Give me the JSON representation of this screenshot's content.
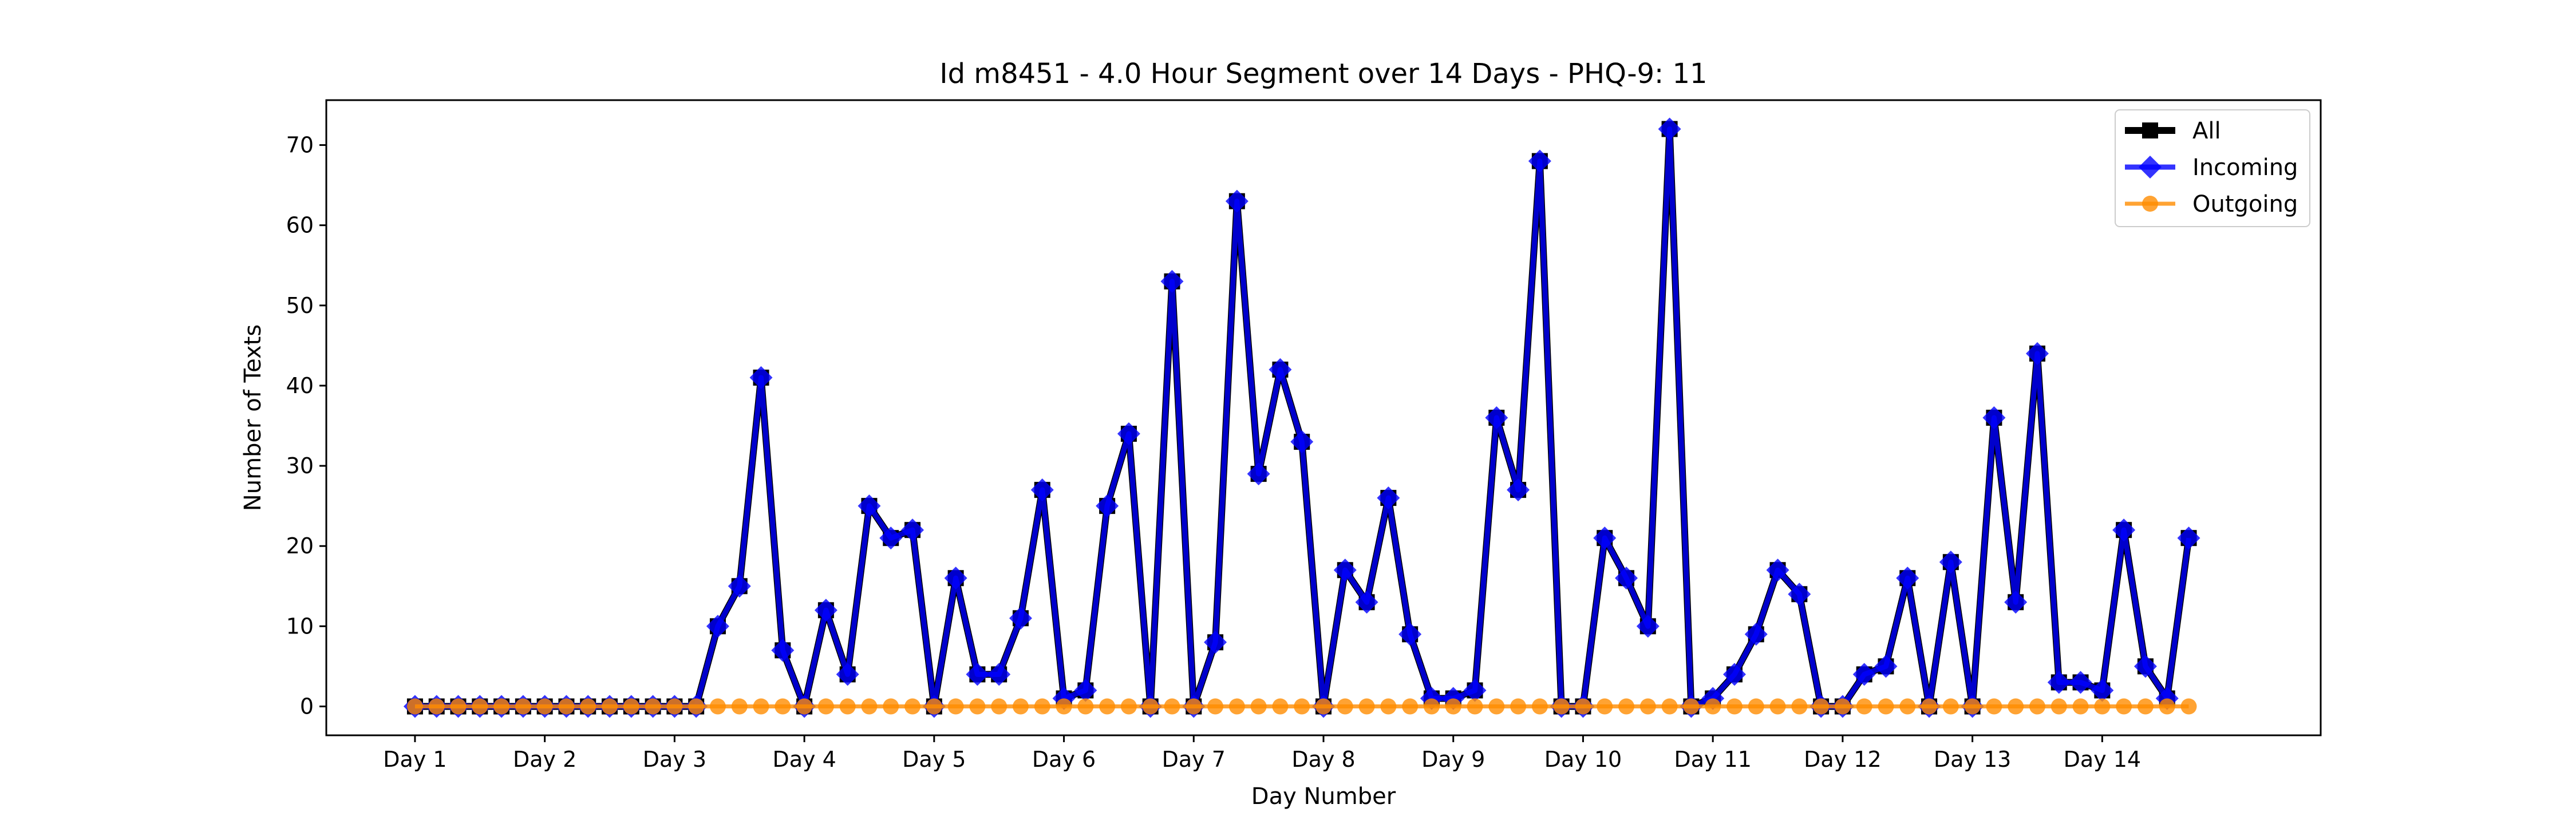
{
  "chart_data": {
    "type": "line",
    "title": "Id m8451 - 4.0 Hour Segment over 14 Days - PHQ-9: 11",
    "xlabel": "Day Number",
    "ylabel": "Number of Texts",
    "x_tick_labels": [
      "Day 1",
      "Day 2",
      "Day 3",
      "Day 4",
      "Day 5",
      "Day 6",
      "Day 7",
      "Day 8",
      "Day 9",
      "Day 10",
      "Day 11",
      "Day 12",
      "Day 13",
      "Day 14"
    ],
    "y_ticks": [
      0,
      10,
      20,
      30,
      40,
      50,
      60,
      70
    ],
    "xlim": [
      -4.1,
      88.1
    ],
    "ylim": [
      -3.6,
      75.6
    ],
    "legend_position": "top-right",
    "grid": false,
    "series": [
      {
        "name": "All",
        "color": "#000000",
        "marker": "square",
        "values": [
          0,
          0,
          0,
          0,
          0,
          0,
          0,
          0,
          0,
          0,
          0,
          0,
          0,
          0,
          10,
          15,
          41,
          7,
          0,
          12,
          4,
          25,
          21,
          22,
          0,
          16,
          4,
          4,
          11,
          27,
          1,
          2,
          25,
          34,
          0,
          53,
          0,
          8,
          63,
          29,
          42,
          33,
          0,
          17,
          13,
          26,
          9,
          1,
          1,
          2,
          36,
          27,
          68,
          0,
          0,
          21,
          16,
          10,
          72,
          0,
          1,
          4,
          9,
          17,
          14,
          0,
          0,
          4,
          5,
          16,
          0,
          18,
          0,
          36,
          13,
          44,
          3,
          3,
          2,
          22,
          5,
          1,
          21
        ]
      },
      {
        "name": "Incoming",
        "color": "#0000ff",
        "marker": "diamond",
        "values": [
          0,
          0,
          0,
          0,
          0,
          0,
          0,
          0,
          0,
          0,
          0,
          0,
          0,
          0,
          10,
          15,
          41,
          7,
          0,
          12,
          4,
          25,
          21,
          22,
          0,
          16,
          4,
          4,
          11,
          27,
          1,
          2,
          25,
          34,
          0,
          53,
          0,
          8,
          63,
          29,
          42,
          33,
          0,
          17,
          13,
          26,
          9,
          1,
          1,
          2,
          36,
          27,
          68,
          0,
          0,
          21,
          16,
          10,
          72,
          0,
          1,
          4,
          9,
          17,
          14,
          0,
          0,
          4,
          5,
          16,
          0,
          18,
          0,
          36,
          13,
          44,
          3,
          3,
          2,
          22,
          5,
          1,
          21
        ]
      },
      {
        "name": "Outgoing",
        "color": "#ff8c00",
        "marker": "circle",
        "values": [
          0,
          0,
          0,
          0,
          0,
          0,
          0,
          0,
          0,
          0,
          0,
          0,
          0,
          0,
          0,
          0,
          0,
          0,
          0,
          0,
          0,
          0,
          0,
          0,
          0,
          0,
          0,
          0,
          0,
          0,
          0,
          0,
          0,
          0,
          0,
          0,
          0,
          0,
          0,
          0,
          0,
          0,
          0,
          0,
          0,
          0,
          0,
          0,
          0,
          0,
          0,
          0,
          0,
          0,
          0,
          0,
          0,
          0,
          0,
          0,
          0,
          0,
          0,
          0,
          0,
          0,
          0,
          0,
          0,
          0,
          0,
          0,
          0,
          0,
          0,
          0,
          0,
          0,
          0,
          0,
          0,
          0,
          0
        ]
      }
    ]
  }
}
